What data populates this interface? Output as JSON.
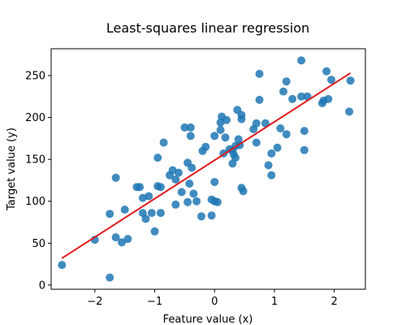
{
  "chart_data": {
    "type": "scatter",
    "title": "Least-squares linear regression",
    "xlabel": "Feature value (x)",
    "ylabel": "Target value (y)",
    "xlim": [
      -2.73,
      2.52
    ],
    "ylim": [
      -5,
      282
    ],
    "grid": false,
    "legend": "none",
    "x_ticks": [
      -2,
      -1,
      0,
      1,
      2
    ],
    "y_ticks": [
      0,
      50,
      100,
      150,
      200,
      250
    ],
    "colors": {
      "points": "#1f77b4",
      "fit_line": "#e31a1c"
    },
    "series": [
      {
        "type": "scatter",
        "points": [
          [
            -2.55,
            24
          ],
          [
            -2.0,
            54
          ],
          [
            -1.75,
            9
          ],
          [
            -1.75,
            85
          ],
          [
            -1.65,
            57
          ],
          [
            -1.65,
            128
          ],
          [
            -1.55,
            51
          ],
          [
            -1.45,
            55
          ],
          [
            -1.5,
            90
          ],
          [
            -1.3,
            117
          ],
          [
            -1.25,
            117
          ],
          [
            -1.2,
            104
          ],
          [
            -1.2,
            86
          ],
          [
            -1.15,
            79
          ],
          [
            -1.1,
            106
          ],
          [
            -1.05,
            86
          ],
          [
            -1.0,
            64
          ],
          [
            -0.95,
            152
          ],
          [
            -0.95,
            118
          ],
          [
            -0.9,
            117
          ],
          [
            -0.9,
            86
          ],
          [
            -0.85,
            170
          ],
          [
            -0.75,
            131
          ],
          [
            -0.7,
            137
          ],
          [
            -0.65,
            96
          ],
          [
            -0.65,
            126
          ],
          [
            -0.6,
            134
          ],
          [
            -0.55,
            111
          ],
          [
            -0.5,
            188
          ],
          [
            -0.45,
            146
          ],
          [
            -0.45,
            99
          ],
          [
            -0.42,
            121
          ],
          [
            -0.4,
            178
          ],
          [
            -0.4,
            188
          ],
          [
            -0.38,
            140
          ],
          [
            -0.35,
            109
          ],
          [
            -0.3,
            100
          ],
          [
            -0.22,
            82
          ],
          [
            -0.2,
            160
          ],
          [
            -0.15,
            165
          ],
          [
            -0.05,
            83
          ],
          [
            -0.05,
            102
          ],
          [
            0.0,
            123
          ],
          [
            0.0,
            100
          ],
          [
            0.0,
            178
          ],
          [
            0.05,
            99
          ],
          [
            0.1,
            194
          ],
          [
            0.1,
            185
          ],
          [
            0.12,
            201
          ],
          [
            0.15,
            157
          ],
          [
            0.18,
            176
          ],
          [
            0.2,
            197
          ],
          [
            0.25,
            162
          ],
          [
            0.3,
            145
          ],
          [
            0.3,
            161
          ],
          [
            0.32,
            156
          ],
          [
            0.35,
            152
          ],
          [
            0.35,
            166
          ],
          [
            0.38,
            209
          ],
          [
            0.4,
            174
          ],
          [
            0.42,
            167
          ],
          [
            0.45,
            198
          ],
          [
            0.45,
            116
          ],
          [
            0.45,
            203
          ],
          [
            0.48,
            112
          ],
          [
            0.65,
            186
          ],
          [
            0.7,
            170
          ],
          [
            0.7,
            193
          ],
          [
            0.75,
            252
          ],
          [
            0.75,
            221
          ],
          [
            0.85,
            193
          ],
          [
            0.9,
            143
          ],
          [
            0.95,
            157
          ],
          [
            0.95,
            131
          ],
          [
            1.05,
            164
          ],
          [
            1.1,
            187
          ],
          [
            1.15,
            231
          ],
          [
            1.2,
            243
          ],
          [
            1.2,
            180
          ],
          [
            1.3,
            222
          ],
          [
            1.45,
            268
          ],
          [
            1.45,
            225
          ],
          [
            1.5,
            184
          ],
          [
            1.5,
            161
          ],
          [
            1.55,
            225
          ],
          [
            1.8,
            217
          ],
          [
            1.82,
            220
          ],
          [
            1.87,
            255
          ],
          [
            1.9,
            222
          ],
          [
            1.95,
            245
          ],
          [
            2.25,
            207
          ],
          [
            2.27,
            244
          ]
        ]
      },
      {
        "type": "line",
        "points": [
          [
            -2.55,
            32
          ],
          [
            2.27,
            253
          ]
        ]
      }
    ]
  }
}
